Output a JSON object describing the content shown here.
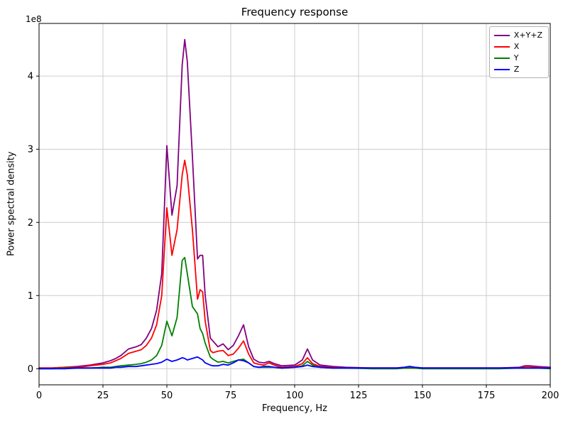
{
  "chart_data": {
    "type": "line",
    "title": "Frequency response",
    "xlabel": "Frequency, Hz",
    "ylabel": "Power spectral density",
    "y_offset_label": "1e8",
    "y_unit": "1e8",
    "grid": true,
    "legend_position": "upper right",
    "xlim": [
      0,
      200
    ],
    "ylim": [
      -0.22,
      4.72
    ],
    "x_ticks": [
      0,
      25,
      50,
      75,
      100,
      125,
      150,
      175,
      200
    ],
    "y_ticks": [
      0,
      1,
      2,
      3,
      4
    ],
    "x": [
      0,
      5,
      10,
      15,
      20,
      25,
      28,
      30,
      32,
      35,
      38,
      40,
      42,
      44,
      46,
      48,
      50,
      52,
      54,
      56,
      57,
      58,
      60,
      62,
      63,
      64,
      65,
      67,
      68,
      70,
      72,
      74,
      76,
      78,
      80,
      82,
      84,
      86,
      88,
      90,
      92,
      95,
      100,
      103,
      105,
      107,
      110,
      115,
      120,
      130,
      140,
      143,
      145,
      147,
      150,
      160,
      170,
      180,
      188,
      190,
      192,
      195,
      200
    ],
    "series": [
      {
        "name": "X+Y+Z",
        "color": "#800080",
        "values": [
          0.01,
          0.01,
          0.02,
          0.03,
          0.05,
          0.08,
          0.11,
          0.14,
          0.18,
          0.27,
          0.3,
          0.33,
          0.42,
          0.55,
          0.8,
          1.3,
          3.05,
          2.1,
          2.5,
          4.15,
          4.5,
          4.2,
          2.9,
          1.5,
          1.55,
          1.55,
          1.0,
          0.42,
          0.38,
          0.3,
          0.34,
          0.26,
          0.32,
          0.45,
          0.6,
          0.3,
          0.13,
          0.09,
          0.08,
          0.1,
          0.07,
          0.04,
          0.05,
          0.12,
          0.27,
          0.12,
          0.05,
          0.03,
          0.02,
          0.01,
          0.01,
          0.02,
          0.03,
          0.02,
          0.01,
          0.01,
          0.01,
          0.01,
          0.02,
          0.04,
          0.04,
          0.03,
          0.02
        ]
      },
      {
        "name": "X",
        "color": "#ff0000",
        "values": [
          0.01,
          0.01,
          0.02,
          0.02,
          0.04,
          0.06,
          0.08,
          0.11,
          0.14,
          0.21,
          0.24,
          0.26,
          0.32,
          0.42,
          0.6,
          1.0,
          2.2,
          1.55,
          1.9,
          2.65,
          2.85,
          2.65,
          1.9,
          0.95,
          1.08,
          1.05,
          0.65,
          0.25,
          0.22,
          0.24,
          0.25,
          0.18,
          0.2,
          0.28,
          0.38,
          0.2,
          0.08,
          0.06,
          0.05,
          0.08,
          0.05,
          0.02,
          0.03,
          0.07,
          0.15,
          0.07,
          0.03,
          0.02,
          0.01,
          0.01,
          0.01,
          0.01,
          0.01,
          0.01,
          0.01,
          0.01,
          0.01,
          0.01,
          0.01,
          0.03,
          0.03,
          0.02,
          0.01
        ]
      },
      {
        "name": "Y",
        "color": "#008000",
        "values": [
          0.0,
          0.0,
          0.01,
          0.01,
          0.01,
          0.02,
          0.02,
          0.03,
          0.04,
          0.05,
          0.06,
          0.07,
          0.09,
          0.12,
          0.18,
          0.32,
          0.65,
          0.45,
          0.7,
          1.48,
          1.52,
          1.3,
          0.85,
          0.75,
          0.55,
          0.48,
          0.35,
          0.16,
          0.13,
          0.09,
          0.1,
          0.08,
          0.1,
          0.12,
          0.13,
          0.08,
          0.03,
          0.02,
          0.02,
          0.02,
          0.02,
          0.01,
          0.02,
          0.04,
          0.1,
          0.05,
          0.02,
          0.01,
          0.01,
          0.0,
          0.0,
          0.01,
          0.01,
          0.01,
          0.0,
          0.0,
          0.0,
          0.0,
          0.01,
          0.01,
          0.01,
          0.01,
          0.0
        ]
      },
      {
        "name": "Z",
        "color": "#0000ff",
        "values": [
          0.0,
          0.0,
          0.0,
          0.01,
          0.01,
          0.01,
          0.01,
          0.02,
          0.02,
          0.03,
          0.03,
          0.04,
          0.05,
          0.06,
          0.07,
          0.09,
          0.13,
          0.1,
          0.12,
          0.15,
          0.14,
          0.12,
          0.14,
          0.16,
          0.14,
          0.12,
          0.08,
          0.05,
          0.04,
          0.04,
          0.06,
          0.05,
          0.08,
          0.12,
          0.11,
          0.08,
          0.03,
          0.02,
          0.03,
          0.03,
          0.02,
          0.01,
          0.02,
          0.03,
          0.05,
          0.03,
          0.02,
          0.01,
          0.01,
          0.01,
          0.01,
          0.02,
          0.03,
          0.02,
          0.01,
          0.01,
          0.01,
          0.01,
          0.01,
          0.01,
          0.01,
          0.01,
          0.01
        ]
      }
    ]
  }
}
